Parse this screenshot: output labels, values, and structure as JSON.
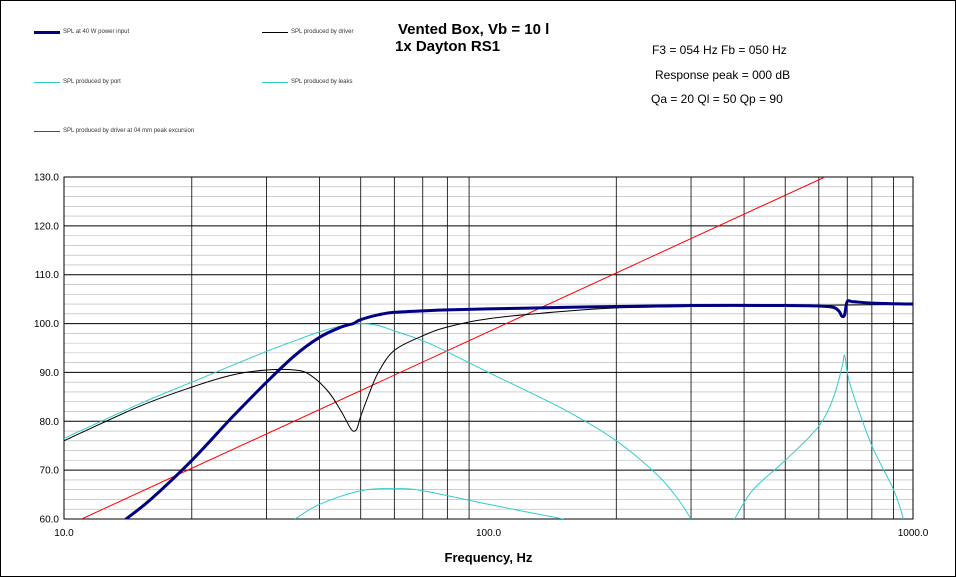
{
  "title_line1": "Vented Box, Vb = 10 l",
  "title_line2": "1x Dayton RS1",
  "info": {
    "f3_fb": "F3 = 054 Hz  Fb = 050 Hz",
    "response_peak": "Response  peak = 000 dB",
    "q_values": "Qa = 20  Ql = 50  Qp = 90"
  },
  "legend": [
    {
      "label": "SPL at 40 W power input",
      "color": "#000080"
    },
    {
      "label": "SPL produced by driver",
      "color": "#000000"
    },
    {
      "label": "SPL produced by port",
      "color": "#33cccc"
    },
    {
      "label": "SPL produced by leaks",
      "color": "#33cccc"
    },
    {
      "label": "SPL produced by driver at 04 mm peak excursion",
      "color": "#ff0000"
    }
  ],
  "chart_data": {
    "type": "line",
    "xlabel": "Frequency, Hz",
    "ylabel": "",
    "xscale": "log",
    "xlim": [
      10,
      1000
    ],
    "ylim": [
      60,
      130
    ],
    "x_ticks": [
      "10.0",
      "100.0",
      "1000.0"
    ],
    "y_ticks": [
      "60.0",
      "70.0",
      "80.0",
      "90.0",
      "100.0",
      "110.0",
      "120.0",
      "130.0"
    ],
    "grid": true,
    "series": [
      {
        "name": "SPL at 40 W power input",
        "color": "#000080",
        "width": 3,
        "x": [
          14,
          16,
          20,
          25,
          30,
          35,
          40,
          45,
          48,
          50,
          55,
          60,
          70,
          80,
          100,
          150,
          200,
          300,
          500,
          600,
          650,
          670,
          680,
          690,
          700,
          720,
          800,
          1000
        ],
        "y": [
          60,
          64,
          72,
          81,
          88,
          93.5,
          97.2,
          99.3,
          100,
          100.8,
          101.8,
          102.3,
          102.6,
          102.8,
          103,
          103.3,
          103.5,
          103.7,
          103.7,
          103.6,
          103.3,
          102.5,
          101.5,
          101.8,
          104.5,
          104.5,
          104.2,
          104
        ]
      },
      {
        "name": "SPL produced by driver",
        "color": "#000000",
        "width": 1,
        "x": [
          10,
          15,
          20,
          25,
          30,
          35,
          38,
          42,
          45,
          47,
          48,
          49,
          50,
          52,
          55,
          60,
          70,
          80,
          100,
          150,
          200,
          300,
          500,
          700,
          1000
        ],
        "y": [
          76,
          83,
          87,
          89.5,
          90.5,
          90.5,
          89.5,
          86,
          82,
          79,
          78,
          78.5,
          81,
          85,
          90,
          94.5,
          97.5,
          99.3,
          101,
          102.5,
          103.2,
          103.5,
          103.7,
          103.8,
          103.9
        ]
      },
      {
        "name": "SPL produced by port",
        "color": "#33cccc",
        "width": 1,
        "x": [
          10,
          15,
          20,
          25,
          30,
          35,
          40,
          45,
          50,
          55,
          60,
          70,
          80,
          100,
          150,
          200,
          250,
          280,
          300
        ],
        "y": [
          76.5,
          83.5,
          88,
          91.5,
          94.3,
          96.5,
          98.3,
          99.5,
          100,
          99.6,
          98.5,
          96.5,
          94.2,
          90,
          82.5,
          76,
          69,
          64,
          60
        ]
      },
      {
        "name": "SPL produced by leaks",
        "color": "#33cccc",
        "width": 1,
        "x": [
          35,
          40,
          50,
          60,
          70,
          100,
          150
        ],
        "y": [
          60,
          63,
          65.8,
          66.2,
          65.8,
          63,
          60
        ]
      },
      {
        "name": "SPL produced by leaks",
        "color": "#33cccc",
        "width": 1,
        "x": [
          380,
          420,
          500,
          600,
          650,
          680,
          690,
          700,
          720,
          800,
          900,
          950
        ],
        "y": [
          60,
          66,
          72,
          79,
          85,
          91,
          93.5,
          90,
          86,
          75,
          66,
          60
        ]
      },
      {
        "name": "SPL produced by driver at 04 mm peak excursion",
        "color": "#ff0000",
        "width": 1,
        "x": [
          11,
          620
        ],
        "y": [
          60,
          130
        ]
      }
    ]
  }
}
